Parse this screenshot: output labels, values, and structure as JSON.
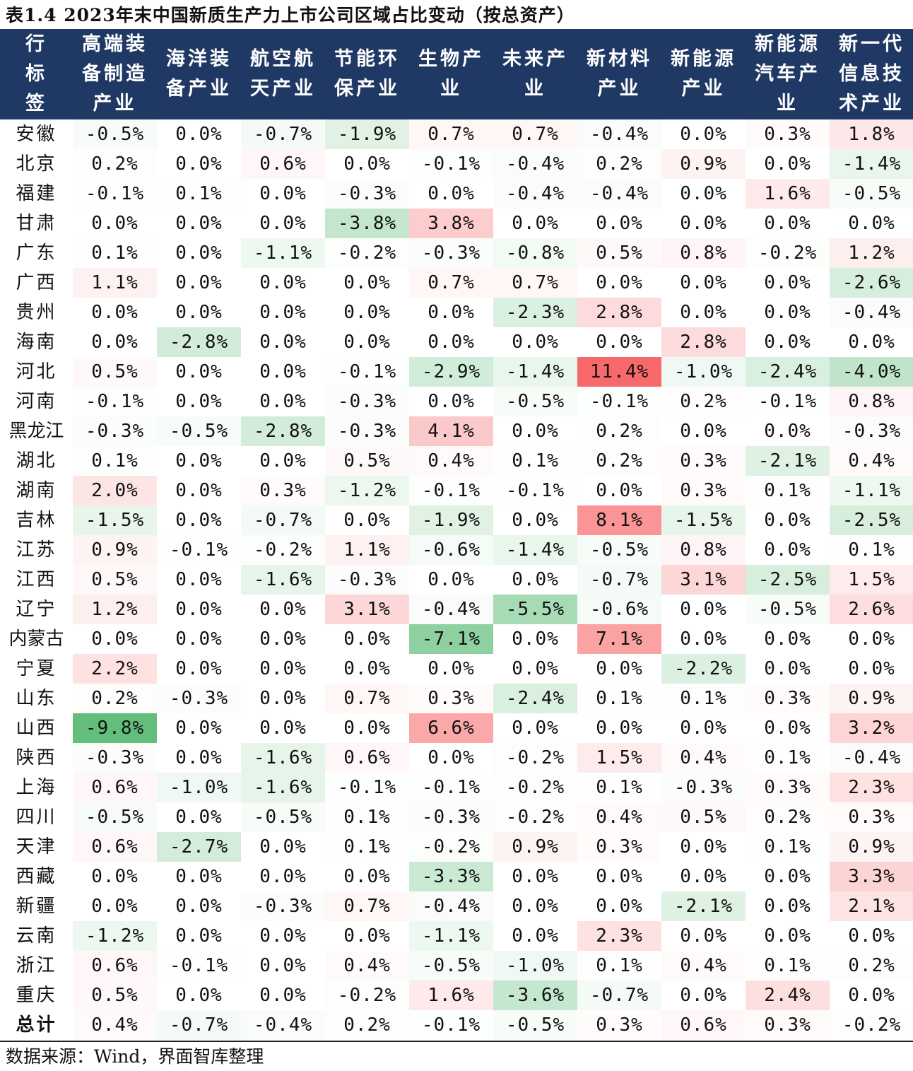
{
  "title": "表1.4 2023年末中国新质生产力上市公司区域占比变动（按总资产）",
  "source": "数据来源：Wind，界面智库整理",
  "chart_data": {
    "type": "table",
    "corner_label": "行标签",
    "columns": [
      "高端装备制造产业",
      "海洋装备产业",
      "航空航天产业",
      "节能环保产业",
      "生物产业",
      "未来产业",
      "新材料产业",
      "新能源产业",
      "新能源汽车产业",
      "新一代信息技术产业"
    ],
    "rows": [
      {
        "label": "安徽",
        "values": [
          -0.5,
          0.0,
          -0.7,
          -1.9,
          0.7,
          0.7,
          -0.4,
          0.0,
          0.3,
          1.8
        ]
      },
      {
        "label": "北京",
        "values": [
          0.2,
          0.0,
          0.6,
          0.0,
          -0.1,
          -0.4,
          0.2,
          0.9,
          0.0,
          -1.4
        ]
      },
      {
        "label": "福建",
        "values": [
          -0.1,
          0.1,
          0.0,
          -0.3,
          0.0,
          -0.4,
          -0.4,
          0.0,
          1.6,
          -0.5
        ]
      },
      {
        "label": "甘肃",
        "values": [
          0.0,
          0.0,
          0.0,
          -3.8,
          3.8,
          0.0,
          0.0,
          0.0,
          0.0,
          0.0
        ]
      },
      {
        "label": "广东",
        "values": [
          0.1,
          0.0,
          -1.1,
          -0.2,
          -0.3,
          -0.8,
          0.5,
          0.8,
          -0.2,
          1.2
        ]
      },
      {
        "label": "广西",
        "values": [
          1.1,
          0.0,
          0.0,
          0.0,
          0.7,
          0.7,
          0.0,
          0.0,
          0.0,
          -2.6
        ]
      },
      {
        "label": "贵州",
        "values": [
          0.0,
          0.0,
          0.0,
          0.0,
          0.0,
          -2.3,
          2.8,
          0.0,
          0.0,
          -0.4
        ]
      },
      {
        "label": "海南",
        "values": [
          0.0,
          -2.8,
          0.0,
          0.0,
          0.0,
          0.0,
          0.0,
          2.8,
          0.0,
          0.0
        ]
      },
      {
        "label": "河北",
        "values": [
          0.5,
          0.0,
          0.0,
          -0.1,
          -2.9,
          -1.4,
          11.4,
          -1.0,
          -2.4,
          -4.0
        ]
      },
      {
        "label": "河南",
        "values": [
          -0.1,
          0.0,
          0.0,
          -0.3,
          0.0,
          -0.5,
          -0.1,
          0.2,
          -0.1,
          0.8
        ]
      },
      {
        "label": "黑龙江",
        "values": [
          -0.3,
          -0.5,
          -2.8,
          -0.3,
          4.1,
          0.0,
          0.2,
          0.0,
          0.0,
          -0.3
        ]
      },
      {
        "label": "湖北",
        "values": [
          0.1,
          0.0,
          0.0,
          0.5,
          0.4,
          0.1,
          0.2,
          0.3,
          -2.1,
          0.4
        ]
      },
      {
        "label": "湖南",
        "values": [
          2.0,
          0.0,
          0.3,
          -1.2,
          -0.1,
          -0.1,
          0.0,
          0.3,
          0.1,
          -1.1
        ]
      },
      {
        "label": "吉林",
        "values": [
          -1.5,
          0.0,
          -0.7,
          0.0,
          -1.9,
          0.0,
          8.1,
          -1.5,
          0.0,
          -2.5
        ]
      },
      {
        "label": "江苏",
        "values": [
          0.9,
          -0.1,
          -0.2,
          1.1,
          -0.6,
          -1.4,
          -0.5,
          0.8,
          0.0,
          0.1
        ]
      },
      {
        "label": "江西",
        "values": [
          0.5,
          0.0,
          -1.6,
          -0.3,
          0.0,
          0.0,
          -0.7,
          3.1,
          -2.5,
          1.5
        ]
      },
      {
        "label": "辽宁",
        "values": [
          1.2,
          0.0,
          0.0,
          3.1,
          -0.4,
          -5.5,
          -0.6,
          0.0,
          -0.5,
          2.6
        ]
      },
      {
        "label": "内蒙古",
        "values": [
          0.0,
          0.0,
          0.0,
          0.0,
          -7.1,
          0.0,
          7.1,
          0.0,
          0.0,
          0.0
        ]
      },
      {
        "label": "宁夏",
        "values": [
          2.2,
          0.0,
          0.0,
          0.0,
          0.0,
          0.0,
          0.0,
          -2.2,
          0.0,
          0.0
        ]
      },
      {
        "label": "山东",
        "values": [
          0.2,
          -0.3,
          0.0,
          0.7,
          0.3,
          -2.4,
          0.1,
          0.1,
          0.3,
          0.9
        ]
      },
      {
        "label": "山西",
        "values": [
          -9.8,
          0.0,
          0.0,
          0.0,
          6.6,
          0.0,
          0.0,
          0.0,
          0.0,
          3.2
        ]
      },
      {
        "label": "陕西",
        "values": [
          -0.3,
          0.0,
          -1.6,
          0.6,
          0.0,
          -0.2,
          1.5,
          0.4,
          0.1,
          -0.4
        ]
      },
      {
        "label": "上海",
        "values": [
          0.6,
          -1.0,
          -1.6,
          -0.1,
          -0.1,
          -0.2,
          0.1,
          -0.3,
          0.3,
          2.3
        ]
      },
      {
        "label": "四川",
        "values": [
          -0.5,
          0.0,
          -0.5,
          0.1,
          -0.3,
          -0.2,
          0.4,
          0.5,
          0.2,
          0.3
        ]
      },
      {
        "label": "天津",
        "values": [
          0.6,
          -2.7,
          0.0,
          0.1,
          -0.2,
          0.9,
          0.3,
          0.0,
          0.1,
          0.9
        ]
      },
      {
        "label": "西藏",
        "values": [
          0.0,
          0.0,
          0.0,
          0.0,
          -3.3,
          0.0,
          0.0,
          0.0,
          0.0,
          3.3
        ]
      },
      {
        "label": "新疆",
        "values": [
          0.0,
          0.0,
          -0.3,
          0.7,
          -0.4,
          0.0,
          0.0,
          -2.1,
          0.0,
          2.1
        ]
      },
      {
        "label": "云南",
        "values": [
          -1.2,
          0.0,
          0.0,
          0.0,
          -1.1,
          0.0,
          2.3,
          0.0,
          0.0,
          0.0
        ]
      },
      {
        "label": "浙江",
        "values": [
          0.6,
          -0.1,
          0.0,
          0.4,
          -0.5,
          -1.0,
          0.1,
          0.4,
          0.1,
          0.2
        ]
      },
      {
        "label": "重庆",
        "values": [
          0.5,
          0.0,
          0.0,
          -0.2,
          1.6,
          -3.6,
          -0.7,
          0.0,
          2.4,
          0.0
        ]
      },
      {
        "label": "总计",
        "values": [
          0.4,
          -0.7,
          -0.4,
          0.2,
          -0.1,
          -0.5,
          0.3,
          0.6,
          0.3,
          -0.2
        ],
        "total": true
      }
    ],
    "value_format": "percent_1dp",
    "color_scale": {
      "negative": "#63be7b",
      "zero": "#ffffff",
      "positive": "#f8696b"
    }
  }
}
